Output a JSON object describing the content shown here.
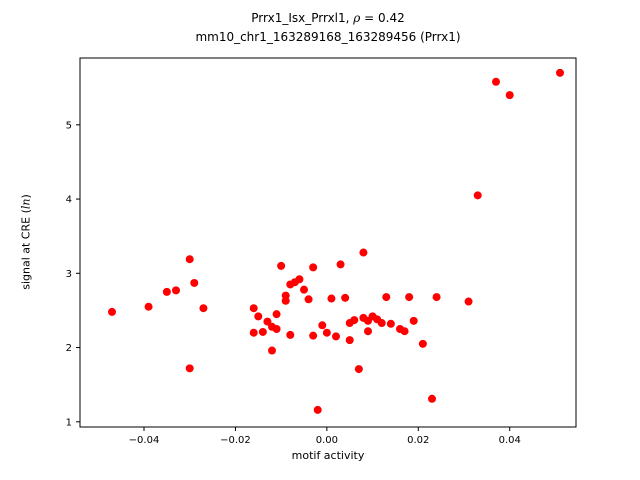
{
  "figure": {
    "title": {
      "prefix": "Prrx1_Isx_Prrxl1, ",
      "rho": "ρ",
      "suffix": " = 0.42"
    },
    "subtitle": "mm10_chr1_163289168_163289456 (Prrx1)",
    "xlabel": "motif activity",
    "ylabel": {
      "prefix": "signal at CRE (",
      "italic": "ln",
      "suffix": ")"
    }
  },
  "chart_data": {
    "type": "scatter",
    "title": "Prrx1_Isx_Prrxl1, ρ = 0.42",
    "subtitle": "mm10_chr1_163289168_163289456 (Prrx1)",
    "xlabel": "motif activity",
    "ylabel": "signal at CRE (ln)",
    "marker_color": "#ff0000",
    "axis_color": "#000000",
    "grid": false,
    "legend": false,
    "xlim": [
      -0.054,
      0.0545
    ],
    "ylim": [
      0.93,
      5.9
    ],
    "x_ticks": [
      -0.04,
      -0.02,
      0.0,
      0.02,
      0.04
    ],
    "x_tick_labels": [
      "−0.04",
      "−0.02",
      "0.00",
      "0.02",
      "0.04"
    ],
    "y_ticks": [
      1,
      2,
      3,
      4,
      5
    ],
    "y_tick_labels": [
      "1",
      "2",
      "3",
      "4",
      "5"
    ],
    "points": [
      [
        -0.047,
        2.48
      ],
      [
        -0.039,
        2.55
      ],
      [
        -0.035,
        2.75
      ],
      [
        -0.033,
        2.77
      ],
      [
        -0.03,
        3.19
      ],
      [
        -0.03,
        1.72
      ],
      [
        -0.029,
        2.87
      ],
      [
        -0.027,
        2.53
      ],
      [
        -0.016,
        2.53
      ],
      [
        -0.016,
        2.2
      ],
      [
        -0.015,
        2.42
      ],
      [
        -0.014,
        2.21
      ],
      [
        -0.013,
        2.35
      ],
      [
        -0.012,
        2.28
      ],
      [
        -0.012,
        1.96
      ],
      [
        -0.011,
        2.45
      ],
      [
        -0.011,
        2.25
      ],
      [
        -0.01,
        3.1
      ],
      [
        -0.009,
        2.7
      ],
      [
        -0.009,
        2.63
      ],
      [
        -0.008,
        2.85
      ],
      [
        -0.008,
        2.17
      ],
      [
        -0.007,
        2.88
      ],
      [
        -0.006,
        2.92
      ],
      [
        -0.005,
        2.78
      ],
      [
        -0.004,
        2.65
      ],
      [
        -0.003,
        3.08
      ],
      [
        -0.003,
        2.16
      ],
      [
        -0.002,
        1.16
      ],
      [
        -0.001,
        2.3
      ],
      [
        0.0,
        2.2
      ],
      [
        0.001,
        2.66
      ],
      [
        0.002,
        2.15
      ],
      [
        0.003,
        3.12
      ],
      [
        0.004,
        2.67
      ],
      [
        0.005,
        2.33
      ],
      [
        0.005,
        2.1
      ],
      [
        0.006,
        2.37
      ],
      [
        0.007,
        1.71
      ],
      [
        0.008,
        3.28
      ],
      [
        0.008,
        2.4
      ],
      [
        0.009,
        2.36
      ],
      [
        0.009,
        2.22
      ],
      [
        0.01,
        2.42
      ],
      [
        0.011,
        2.38
      ],
      [
        0.012,
        2.33
      ],
      [
        0.013,
        2.68
      ],
      [
        0.014,
        2.32
      ],
      [
        0.016,
        2.25
      ],
      [
        0.017,
        2.22
      ],
      [
        0.018,
        2.68
      ],
      [
        0.019,
        2.36
      ],
      [
        0.021,
        2.05
      ],
      [
        0.023,
        1.31
      ],
      [
        0.024,
        2.68
      ],
      [
        0.031,
        2.62
      ],
      [
        0.033,
        4.05
      ],
      [
        0.037,
        5.58
      ],
      [
        0.04,
        5.4
      ],
      [
        0.051,
        5.7
      ]
    ]
  }
}
